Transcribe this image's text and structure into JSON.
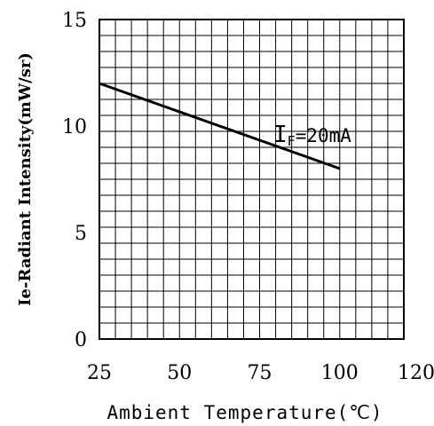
{
  "chart_data": {
    "type": "line",
    "title": "",
    "xlabel": "Ambient Temperature(℃)",
    "ylabel": "Ie-Radiant Intensity(mW/sr)",
    "xlim": [
      25,
      120
    ],
    "ylim": [
      0,
      15
    ],
    "x_ticks": [
      "25",
      "50",
      "75",
      "100",
      "120"
    ],
    "y_ticks": [
      "0",
      "5",
      "10",
      "15"
    ],
    "grid": true,
    "series": [
      {
        "name": "IF=20mA",
        "x": [
          25,
          100
        ],
        "y": [
          12,
          8
        ]
      }
    ],
    "annotation": {
      "main": "I",
      "sub": "F",
      "rest": "=20mA"
    }
  }
}
